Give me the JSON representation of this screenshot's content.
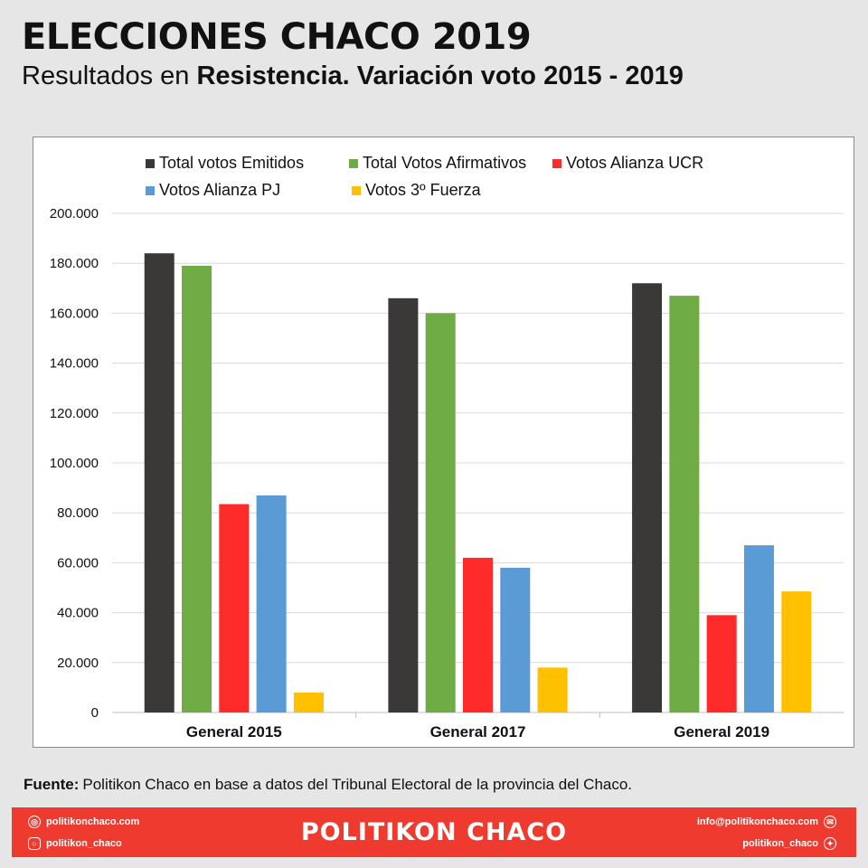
{
  "header": {
    "title": "ELECCIONES CHACO 2019",
    "subtitle_pre": "Resultados en ",
    "subtitle_bold": "Resistencia. Variación voto 2015 - 2019"
  },
  "source": {
    "label": "Fuente:",
    "text": "Politikon Chaco en base a datos del Tribunal Electoral de la provincia del Chaco."
  },
  "footer": {
    "brand": "POLITIKON CHACO",
    "website": "politikonchaco.com",
    "instagram": "politikon_chaco",
    "email": "info@politikonchaco.com",
    "twitter": "politikon_chaco",
    "background": "#ef3b2f",
    "icons": [
      "globe-icon",
      "instagram-icon",
      "mail-icon",
      "twitter-icon"
    ]
  },
  "chart_data": {
    "type": "bar",
    "categories": [
      "General 2015",
      "General 2017",
      "General 2019"
    ],
    "series": [
      {
        "name": "Total votos Emitidos",
        "color": "#3a3937",
        "values": [
          184000,
          166000,
          172000
        ]
      },
      {
        "name": "Total Votos Afirmativos",
        "color": "#6fac46",
        "values": [
          179000,
          160000,
          167000
        ]
      },
      {
        "name": "Votos Alianza UCR",
        "color": "#ff2a2a",
        "values": [
          83500,
          62000,
          39000
        ]
      },
      {
        "name": "Votos Alianza PJ",
        "color": "#5b9bd5",
        "values": [
          87000,
          58000,
          67000
        ]
      },
      {
        "name": "Votos 3º Fuerza",
        "color": "#ffc000",
        "values": [
          8000,
          18000,
          48500
        ]
      }
    ],
    "ylim": [
      0,
      200000
    ],
    "yticks": [
      0,
      20000,
      40000,
      60000,
      80000,
      100000,
      120000,
      140000,
      160000,
      180000,
      200000
    ],
    "ytick_labels": [
      "0",
      "20.000",
      "40.000",
      "60.000",
      "80.000",
      "100.000",
      "120.000",
      "140.000",
      "160.000",
      "180.000",
      "200.000"
    ],
    "grid": true,
    "legend_position": "top",
    "xlabel": "",
    "ylabel": ""
  }
}
